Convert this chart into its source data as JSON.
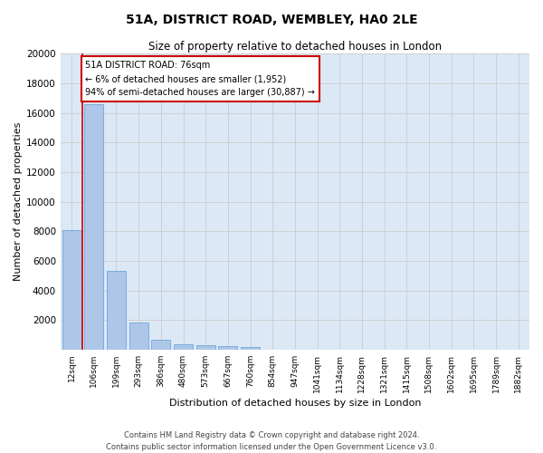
{
  "title": "51A, DISTRICT ROAD, WEMBLEY, HA0 2LE",
  "subtitle": "Size of property relative to detached houses in London",
  "xlabel": "Distribution of detached houses by size in London",
  "ylabel": "Number of detached properties",
  "bar_labels": [
    "12sqm",
    "106sqm",
    "199sqm",
    "293sqm",
    "386sqm",
    "480sqm",
    "573sqm",
    "667sqm",
    "760sqm",
    "854sqm",
    "947sqm",
    "1041sqm",
    "1134sqm",
    "1228sqm",
    "1321sqm",
    "1415sqm",
    "1508sqm",
    "1602sqm",
    "1695sqm",
    "1789sqm",
    "1882sqm"
  ],
  "bar_values": [
    8100,
    16600,
    5300,
    1850,
    700,
    380,
    290,
    220,
    200,
    0,
    0,
    0,
    0,
    0,
    0,
    0,
    0,
    0,
    0,
    0,
    0
  ],
  "bar_color": "#aec6e8",
  "bar_edge_color": "#5a9fd4",
  "annotation_title": "51A DISTRICT ROAD: 76sqm",
  "annotation_line1": "← 6% of detached houses are smaller (1,952)",
  "annotation_line2": "94% of semi-detached houses are larger (30,887) →",
  "annotation_box_color": "#ffffff",
  "annotation_border_color": "#cc0000",
  "vline_color": "#cc0000",
  "vline_x": 0.5,
  "ylim": [
    0,
    20000
  ],
  "yticks": [
    0,
    2000,
    4000,
    6000,
    8000,
    10000,
    12000,
    14000,
    16000,
    18000,
    20000
  ],
  "grid_color": "#cccccc",
  "bg_color": "#dce8f5",
  "footer_line1": "Contains HM Land Registry data © Crown copyright and database right 2024.",
  "footer_line2": "Contains public sector information licensed under the Open Government Licence v3.0."
}
